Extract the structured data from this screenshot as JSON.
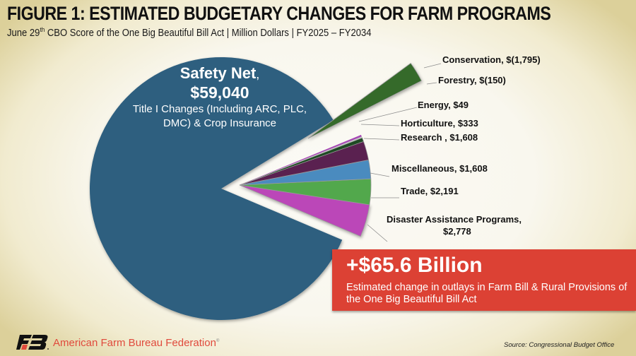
{
  "header": {
    "title": "FIGURE 1: ESTIMATED BUDGETARY CHANGES FOR FARM PROGRAMS",
    "subtitle_pre": "June 29",
    "subtitle_sup": "th",
    "subtitle_post": " CBO Score of the One Big Beautiful Bill Act | Million Dollars | FY2025 – FY2034"
  },
  "chart_data": {
    "type": "pie",
    "title": "Estimated Budgetary Changes for Farm Programs",
    "unit": "Million Dollars",
    "slices": [
      {
        "name": "Safety Net",
        "value": 59040,
        "label": "$59,040",
        "color": "#2e5f7f",
        "description": "Title I Changes (Including ARC, PLC, DMC) & Crop Insurance"
      },
      {
        "name": "Disaster Assistance Programs",
        "value": 2778,
        "label": "Disaster Assistance Programs,",
        "label2": "$2,778",
        "color": "#bb47b8"
      },
      {
        "name": "Trade",
        "value": 2191,
        "label": "Trade,  $2,191",
        "color": "#52a84c"
      },
      {
        "name": "Miscellaneous",
        "value": 1608,
        "label": "Miscellaneous,  $1,608",
        "color": "#4a8bbf"
      },
      {
        "name": "Research",
        "value": 1608,
        "label": "Research ,  $1,608",
        "color": "#5a2150"
      },
      {
        "name": "Horticulture",
        "value": 333,
        "label": "Horticulture,  $333",
        "color": "#1e4a23"
      },
      {
        "name": "Energy",
        "value": 49,
        "label": "Energy,  $49",
        "color": "#c0c0c0"
      },
      {
        "name": "Forestry",
        "value": -150,
        "label": "Forestry,  $(150)",
        "color": "#a545b4"
      },
      {
        "name": "Conservation",
        "value": -1795,
        "label": "Conservation,  $(1,795)",
        "color": "#356b2c"
      }
    ]
  },
  "banner": {
    "headline": "+$65.6 Billion",
    "text": "Estimated change in outlays in Farm Bill & Rural Provisions of the One Big Beautiful Bill Act"
  },
  "footer": {
    "organization": "American Farm Bureau Federation",
    "registered": "®",
    "source": "Source: Congressional Budget Office"
  }
}
